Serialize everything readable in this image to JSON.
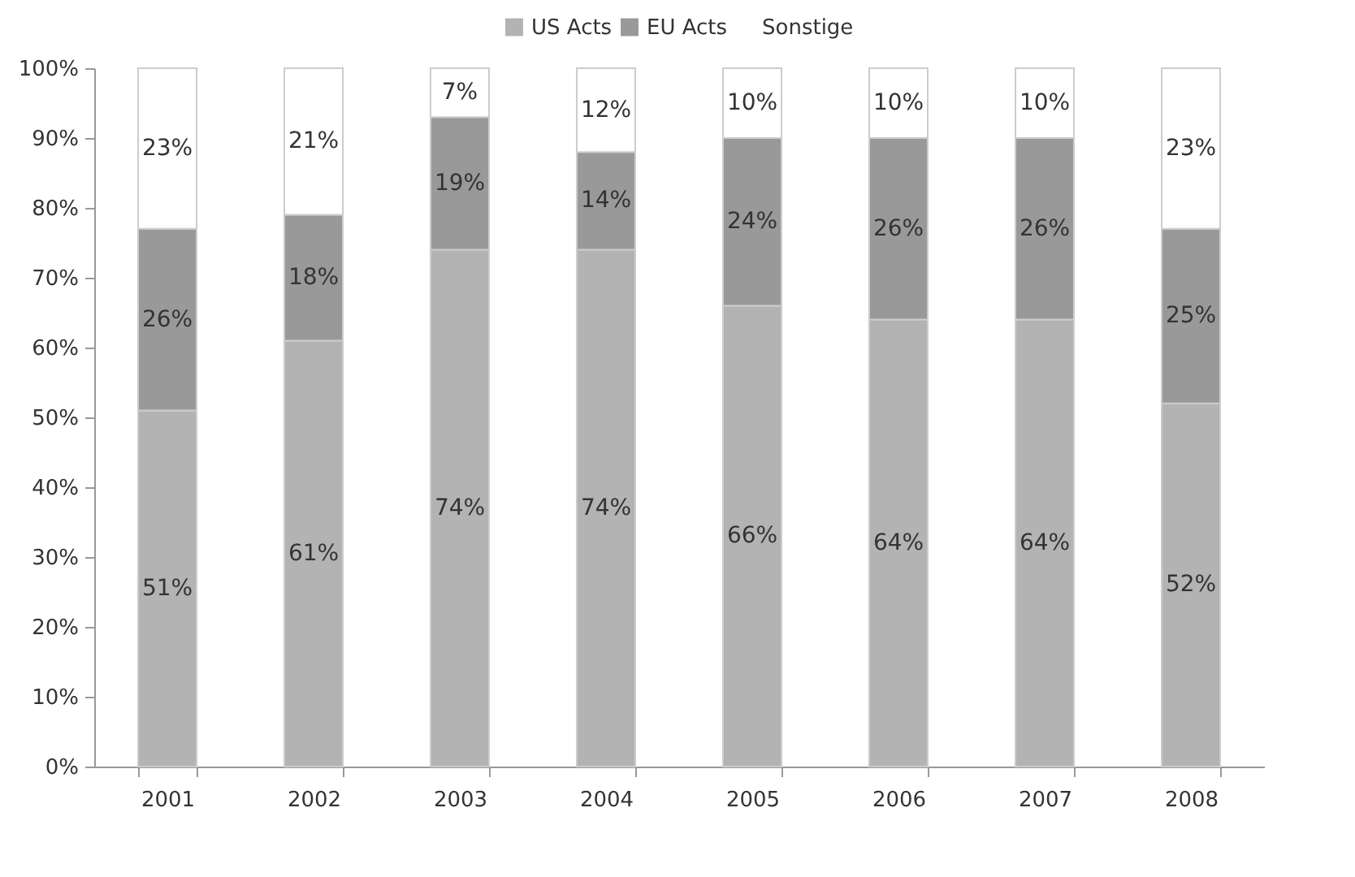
{
  "chart_data": {
    "type": "bar",
    "stacked": true,
    "categories": [
      "2001",
      "2002",
      "2003",
      "2004",
      "2005",
      "2006",
      "2007",
      "2008"
    ],
    "series": [
      {
        "name": "US Acts",
        "color": "#b3b3b3",
        "values": [
          51,
          61,
          74,
          74,
          66,
          64,
          64,
          52
        ],
        "value_labels": [
          "51%",
          "61%",
          "74%",
          "74%",
          "66%",
          "64%",
          "64%",
          "52%"
        ]
      },
      {
        "name": "EU Acts",
        "color": "#999999",
        "values": [
          26,
          18,
          19,
          14,
          24,
          26,
          26,
          25
        ],
        "value_labels": [
          "26%",
          "18%",
          "19%",
          "14%",
          "24%",
          "26%",
          "26%",
          "25%"
        ]
      },
      {
        "name": "Sonstige",
        "color": "#ffffff",
        "values": [
          23,
          21,
          7,
          12,
          10,
          10,
          10,
          23
        ],
        "value_labels": [
          "23%",
          "21%",
          "7%",
          "12%",
          "10%",
          "10%",
          "10%",
          "23%"
        ]
      }
    ],
    "ylim": [
      0,
      100
    ],
    "yticks": [
      {
        "value": 0,
        "label": "0%"
      },
      {
        "value": 10,
        "label": "10%"
      },
      {
        "value": 20,
        "label": "20%"
      },
      {
        "value": 30,
        "label": "30%"
      },
      {
        "value": 40,
        "label": "40%"
      },
      {
        "value": 50,
        "label": "50%"
      },
      {
        "value": 60,
        "label": "60%"
      },
      {
        "value": 70,
        "label": "70%"
      },
      {
        "value": 80,
        "label": "80%"
      },
      {
        "value": 90,
        "label": "90%"
      },
      {
        "value": 100,
        "label": "100%"
      }
    ],
    "legend": "top",
    "grid": false
  }
}
